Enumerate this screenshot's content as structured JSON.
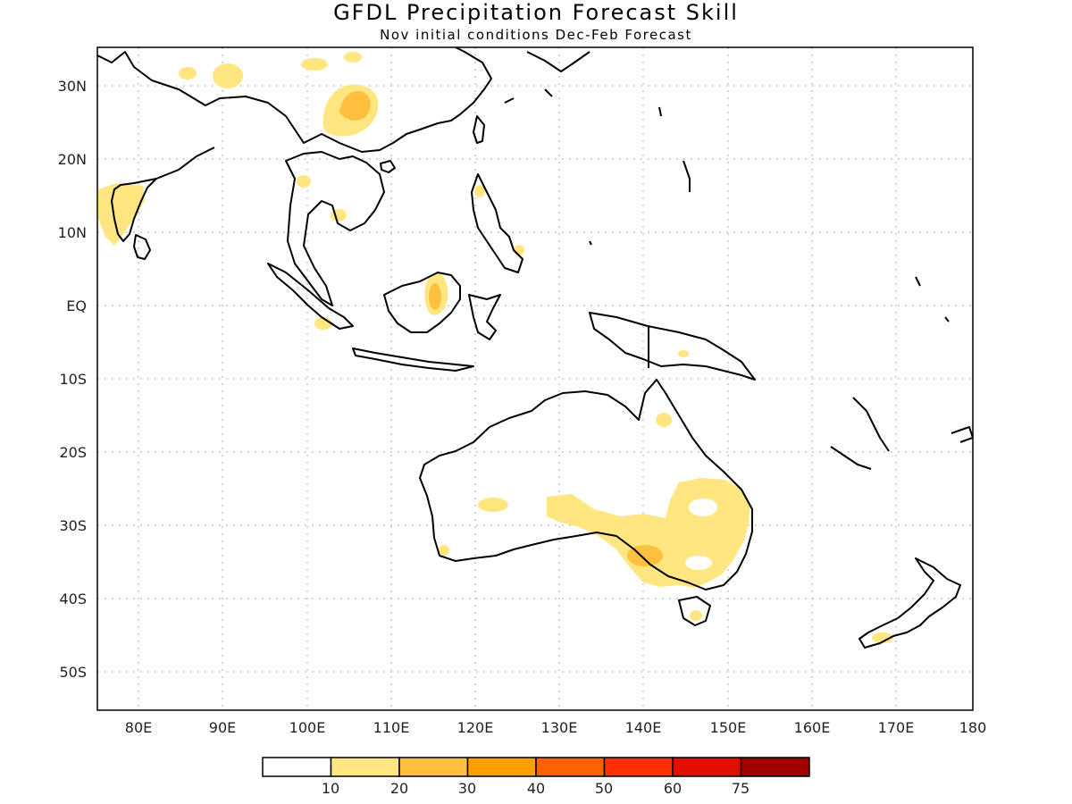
{
  "title": "GFDL Precipitation Forecast Skill",
  "subtitle": "Nov initial conditions  Dec-Feb Forecast",
  "map": {
    "lon_ticks": [
      "80E",
      "90E",
      "100E",
      "110E",
      "120E",
      "130E",
      "140E",
      "150E",
      "160E",
      "170E",
      "180"
    ],
    "lat_ticks": [
      "30N",
      "20N",
      "10N",
      "EQ",
      "10S",
      "20S",
      "30S",
      "40S",
      "50S"
    ]
  },
  "colorbar": {
    "colors": [
      "#ffffff",
      "#ffe680",
      "#ffc040",
      "#ffa000",
      "#ff6000",
      "#ff3000",
      "#e01000",
      "#a00000"
    ],
    "labels": [
      "10",
      "20",
      "30",
      "40",
      "50",
      "60",
      "75"
    ]
  }
}
